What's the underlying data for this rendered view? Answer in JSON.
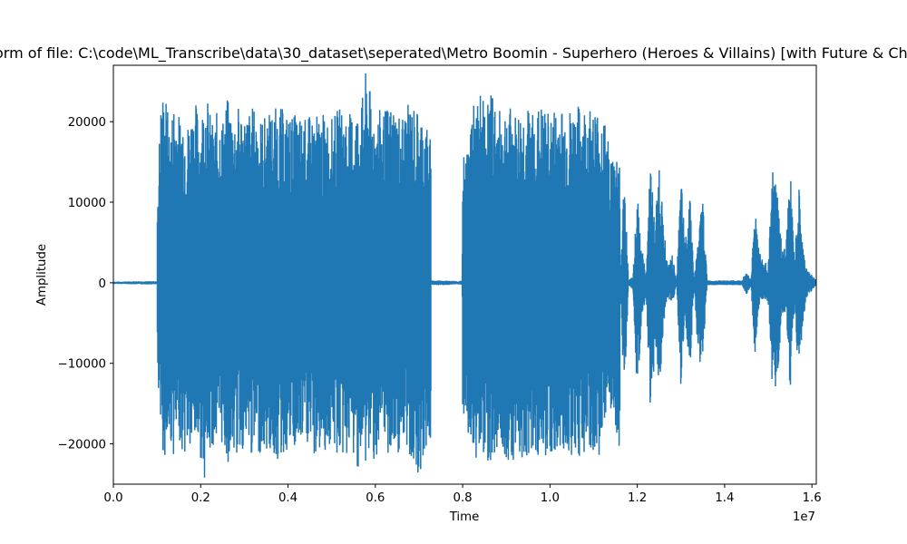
{
  "chart_data": {
    "type": "line",
    "title": "Waveform of file: C:\\code\\ML_Transcribe\\data\\30_dataset\\seperated\\Metro Boomin - Superhero (Heroes & Villains) [with Future & Chris Brown]",
    "xlabel": "Time",
    "ylabel": "Amplitude",
    "x_offset_label": "1e7",
    "xlim": [
      0,
      1.61
    ],
    "ylim": [
      -25000,
      27000
    ],
    "x_ticks": [
      0.0,
      0.2,
      0.4,
      0.6,
      0.8,
      1.0,
      1.2,
      1.4,
      1.6
    ],
    "x_tick_labels": [
      "0.0",
      "0.2",
      "0.4",
      "0.6",
      "0.8",
      "1.0",
      "1.2",
      "1.4",
      "1.6"
    ],
    "y_ticks": [
      -20000,
      -10000,
      0,
      10000,
      20000
    ],
    "y_tick_labels": [
      "−20000",
      "−10000",
      "0",
      "10000",
      "20000"
    ],
    "grid": false,
    "line_color": "#1f77b4",
    "series": [
      {
        "envelope": [
          [
            0.0,
            150,
            -150
          ],
          [
            0.06,
            200,
            -200
          ],
          [
            0.1,
            200,
            -200
          ],
          [
            0.101,
            13000,
            -13000
          ],
          [
            0.11,
            24000,
            -21000
          ],
          [
            0.12,
            23500,
            -22000
          ],
          [
            0.13,
            19000,
            -20000
          ],
          [
            0.14,
            24000,
            -22000
          ],
          [
            0.15,
            21000,
            -19000
          ],
          [
            0.16,
            22000,
            -22000
          ],
          [
            0.17,
            20000,
            -21000
          ],
          [
            0.18,
            22000,
            -22000
          ],
          [
            0.19,
            22500,
            -20000
          ],
          [
            0.2,
            20000,
            -22000
          ],
          [
            0.21,
            25000,
            -24500
          ],
          [
            0.22,
            21500,
            -22000
          ],
          [
            0.23,
            19500,
            -20000
          ],
          [
            0.24,
            22000,
            -22000
          ],
          [
            0.25,
            20500,
            -20000
          ],
          [
            0.26,
            23000,
            -23000
          ],
          [
            0.27,
            22000,
            -21000
          ],
          [
            0.28,
            21000,
            -22000
          ],
          [
            0.29,
            22500,
            -21000
          ],
          [
            0.3,
            21000,
            -21000
          ],
          [
            0.32,
            22000,
            -22000
          ],
          [
            0.34,
            20500,
            -21000
          ],
          [
            0.36,
            21500,
            -21500
          ],
          [
            0.38,
            22000,
            -22500
          ],
          [
            0.4,
            21000,
            -21000
          ],
          [
            0.42,
            21000,
            -21500
          ],
          [
            0.44,
            20500,
            -20000
          ],
          [
            0.46,
            21000,
            -22000
          ],
          [
            0.48,
            21000,
            -21000
          ],
          [
            0.5,
            20500,
            -21000
          ],
          [
            0.52,
            22000,
            -22000
          ],
          [
            0.54,
            21000,
            -21500
          ],
          [
            0.56,
            22000,
            -23000
          ],
          [
            0.57,
            23000,
            -22500
          ],
          [
            0.58,
            27000,
            -23000
          ],
          [
            0.59,
            23000,
            -21000
          ],
          [
            0.6,
            21500,
            -22500
          ],
          [
            0.62,
            21500,
            -21000
          ],
          [
            0.64,
            22500,
            -22000
          ],
          [
            0.66,
            21000,
            -21000
          ],
          [
            0.68,
            22500,
            -22000
          ],
          [
            0.7,
            21500,
            -24000
          ],
          [
            0.71,
            21000,
            -22000
          ],
          [
            0.72,
            19500,
            -21000
          ],
          [
            0.727,
            18000,
            -20000
          ],
          [
            0.728,
            300,
            -300
          ],
          [
            0.76,
            300,
            -300
          ],
          [
            0.79,
            200,
            -200
          ],
          [
            0.799,
            300,
            -300
          ],
          [
            0.8,
            17000,
            -18000
          ],
          [
            0.81,
            16000,
            -19000
          ],
          [
            0.82,
            23000,
            -21000
          ],
          [
            0.83,
            21500,
            -22000
          ],
          [
            0.84,
            24000,
            -22000
          ],
          [
            0.85,
            22500,
            -21000
          ],
          [
            0.86,
            23500,
            -22500
          ],
          [
            0.87,
            24000,
            -22000
          ],
          [
            0.88,
            21000,
            -20500
          ],
          [
            0.9,
            22500,
            -22000
          ],
          [
            0.92,
            21000,
            -22000
          ],
          [
            0.94,
            22000,
            -22000
          ],
          [
            0.96,
            21500,
            -21000
          ],
          [
            0.98,
            22000,
            -22000
          ],
          [
            1.0,
            21000,
            -21500
          ],
          [
            1.02,
            22500,
            -22000
          ],
          [
            1.04,
            21500,
            -21000
          ],
          [
            1.06,
            22000,
            -22000
          ],
          [
            1.08,
            22000,
            -21500
          ],
          [
            1.1,
            22000,
            -22000
          ],
          [
            1.12,
            21500,
            -21000
          ],
          [
            1.14,
            16000,
            -17000
          ],
          [
            1.16,
            17000,
            -21000
          ],
          [
            1.161,
            300,
            -300
          ],
          [
            1.17,
            14000,
            -15000
          ],
          [
            1.18,
            300,
            -300
          ],
          [
            1.19,
            800,
            -800
          ],
          [
            1.2,
            12000,
            -15000
          ],
          [
            1.21,
            4500,
            -5000
          ],
          [
            1.22,
            1000,
            -1500
          ],
          [
            1.23,
            16000,
            -17500
          ],
          [
            1.24,
            7000,
            -9000
          ],
          [
            1.25,
            15500,
            -15500
          ],
          [
            1.26,
            7500,
            -5000
          ],
          [
            1.27,
            2000,
            -2000
          ],
          [
            1.28,
            3500,
            -3000
          ],
          [
            1.29,
            300,
            -300
          ],
          [
            1.3,
            13000,
            -13500
          ],
          [
            1.31,
            5000,
            -4000
          ],
          [
            1.32,
            13000,
            -13000
          ],
          [
            1.33,
            300,
            -300
          ],
          [
            1.34,
            6000,
            -10000
          ],
          [
            1.35,
            11000,
            -10000
          ],
          [
            1.36,
            300,
            -300
          ],
          [
            1.38,
            300,
            -300
          ],
          [
            1.4,
            300,
            -300
          ],
          [
            1.44,
            300,
            -300
          ],
          [
            1.45,
            1500,
            -1500
          ],
          [
            1.46,
            300,
            -300
          ],
          [
            1.47,
            10000,
            -10000
          ],
          [
            1.48,
            4000,
            -3000
          ],
          [
            1.49,
            2500,
            -2000
          ],
          [
            1.5,
            2500,
            -2500
          ],
          [
            1.51,
            14000,
            -14000
          ],
          [
            1.52,
            12000,
            -13000
          ],
          [
            1.53,
            5000,
            -5000
          ],
          [
            1.54,
            4000,
            -4000
          ],
          [
            1.55,
            15000,
            -13500
          ],
          [
            1.56,
            2500,
            -3000
          ],
          [
            1.57,
            12000,
            -12000
          ],
          [
            1.58,
            4000,
            -4500
          ],
          [
            1.59,
            1500,
            -1500
          ],
          [
            1.6,
            1000,
            -1000
          ],
          [
            1.61,
            300,
            -300
          ]
        ]
      }
    ]
  }
}
